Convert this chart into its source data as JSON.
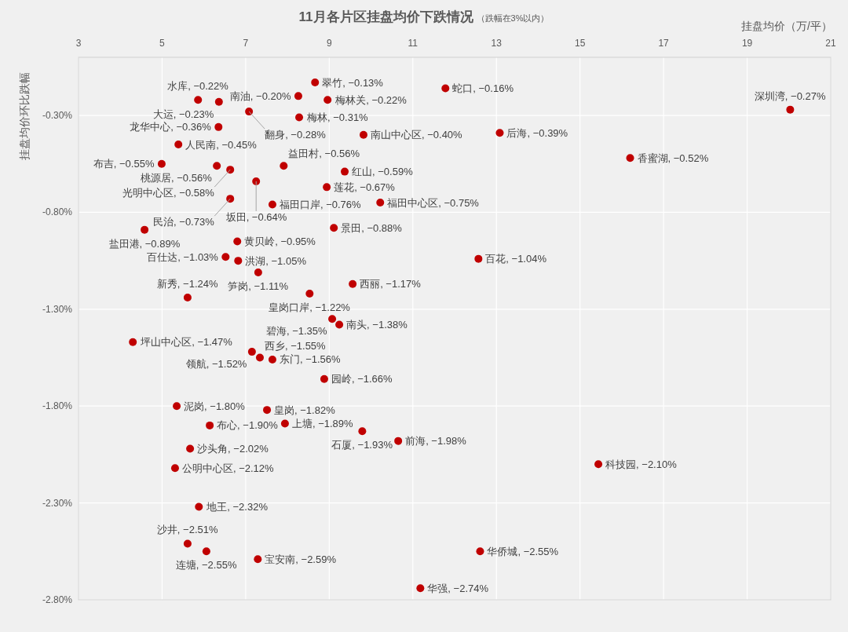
{
  "chart_data": {
    "type": "scatter",
    "title": "11月各片区挂盘均价下跌情况",
    "subtitle": "（跌幅在3%以内）",
    "xlabel": "挂盘均价（万/平）",
    "ylabel": "挂盘均价环比跌幅",
    "color": "#c00000",
    "grid": true,
    "marker": "circle",
    "xlim": [
      3,
      21
    ],
    "xticks": [
      3,
      5,
      7,
      9,
      11,
      13,
      15,
      17,
      19,
      21
    ],
    "ylim": [
      -2.8,
      0
    ],
    "yticks": [
      {
        "value": -2.8,
        "label": "-2.80%"
      },
      {
        "value": -2.3,
        "label": "-2.30%"
      },
      {
        "value": -1.8,
        "label": "-1.80%"
      },
      {
        "value": -1.3,
        "label": "-1.30%"
      },
      {
        "value": -0.8,
        "label": "-0.80%"
      },
      {
        "value": -0.3,
        "label": "-0.30%"
      }
    ],
    "x": [
      8.66,
      11.78,
      8.26,
      6.36,
      5.86,
      8.96,
      20.03,
      7.08,
      8.28,
      6.35,
      9.82,
      13.08,
      5.39,
      16.2,
      4.99,
      6.31,
      6.63,
      7.91,
      9.37,
      7.25,
      8.94,
      6.63,
      10.22,
      7.64,
      4.58,
      9.11,
      6.8,
      12.57,
      6.52,
      6.82,
      7.3,
      9.56,
      8.53,
      5.61,
      9.07,
      9.24,
      4.3,
      7.15,
      7.34,
      7.64,
      8.88,
      5.35,
      7.51,
      6.14,
      7.94,
      9.79,
      10.65,
      5.67,
      15.44,
      5.31,
      5.88,
      5.61,
      6.06,
      12.61,
      7.29,
      11.18
    ],
    "values": [
      -0.13,
      -0.16,
      -0.2,
      -0.23,
      -0.22,
      -0.22,
      -0.27,
      -0.28,
      -0.31,
      -0.36,
      -0.4,
      -0.39,
      -0.45,
      -0.52,
      -0.55,
      -0.56,
      -0.58,
      -0.56,
      -0.59,
      -0.64,
      -0.67,
      -0.73,
      -0.75,
      -0.76,
      -0.89,
      -0.88,
      -0.95,
      -1.04,
      -1.03,
      -1.05,
      -1.11,
      -1.17,
      -1.22,
      -1.24,
      -1.35,
      -1.38,
      -1.47,
      -1.52,
      -1.55,
      -1.56,
      -1.66,
      -1.8,
      -1.82,
      -1.9,
      -1.89,
      -1.93,
      -1.98,
      -2.02,
      -2.1,
      -2.12,
      -2.32,
      -2.51,
      -2.55,
      -2.55,
      -2.59,
      -2.74
    ],
    "value_labels": [
      "翠竹, −0.13%",
      "蛇口, −0.16%",
      "南油, −0.20%",
      "大运, −0.23%",
      "水库, −0.22%",
      "梅林关, −0.22%",
      "深圳湾, −0.27%",
      "翻身, −0.28%",
      "梅林, −0.31%",
      "龙华中心, −0.36%",
      "南山中心区, −0.40%",
      "后海, −0.39%",
      "人民南, −0.45%",
      "香蜜湖, −0.52%",
      "布吉, −0.55%",
      "桃源居, −0.56%",
      "光明中心区, −0.58%",
      "益田村, −0.56%",
      "红山, −0.59%",
      "坂田, −0.64%",
      "莲花, −0.67%",
      "民治, −0.73%",
      "福田中心区, −0.75%",
      "福田口岸, −0.76%",
      "盐田港, −0.89%",
      "景田, −0.88%",
      "黄贝岭, −0.95%",
      "百花, −1.04%",
      "百仕达, −1.03%",
      "洪湖, −1.05%",
      "笋岗, −1.11%",
      "西丽, −1.17%",
      "皇岗口岸, −1.22%",
      "新秀, −1.24%",
      "碧海, −1.35%",
      "南头, −1.38%",
      "坪山中心区, −1.47%",
      "领航, −1.52%",
      "西乡, −1.55%",
      "东门, −1.56%",
      "园岭, −1.66%",
      "泥岗, −1.80%",
      "皇岗, −1.82%",
      "布心, −1.90%",
      "上塘, −1.89%",
      "石厦, −1.93%",
      "前海, −1.98%",
      "沙头角, −2.02%",
      "科技园, −2.10%",
      "公明中心区, −2.12%",
      "地王, −2.32%",
      "沙井, −2.51%",
      "连塘, −2.55%",
      "华侨城, −2.55%",
      "宝安南, −2.59%",
      "华强, −2.74%"
    ]
  }
}
